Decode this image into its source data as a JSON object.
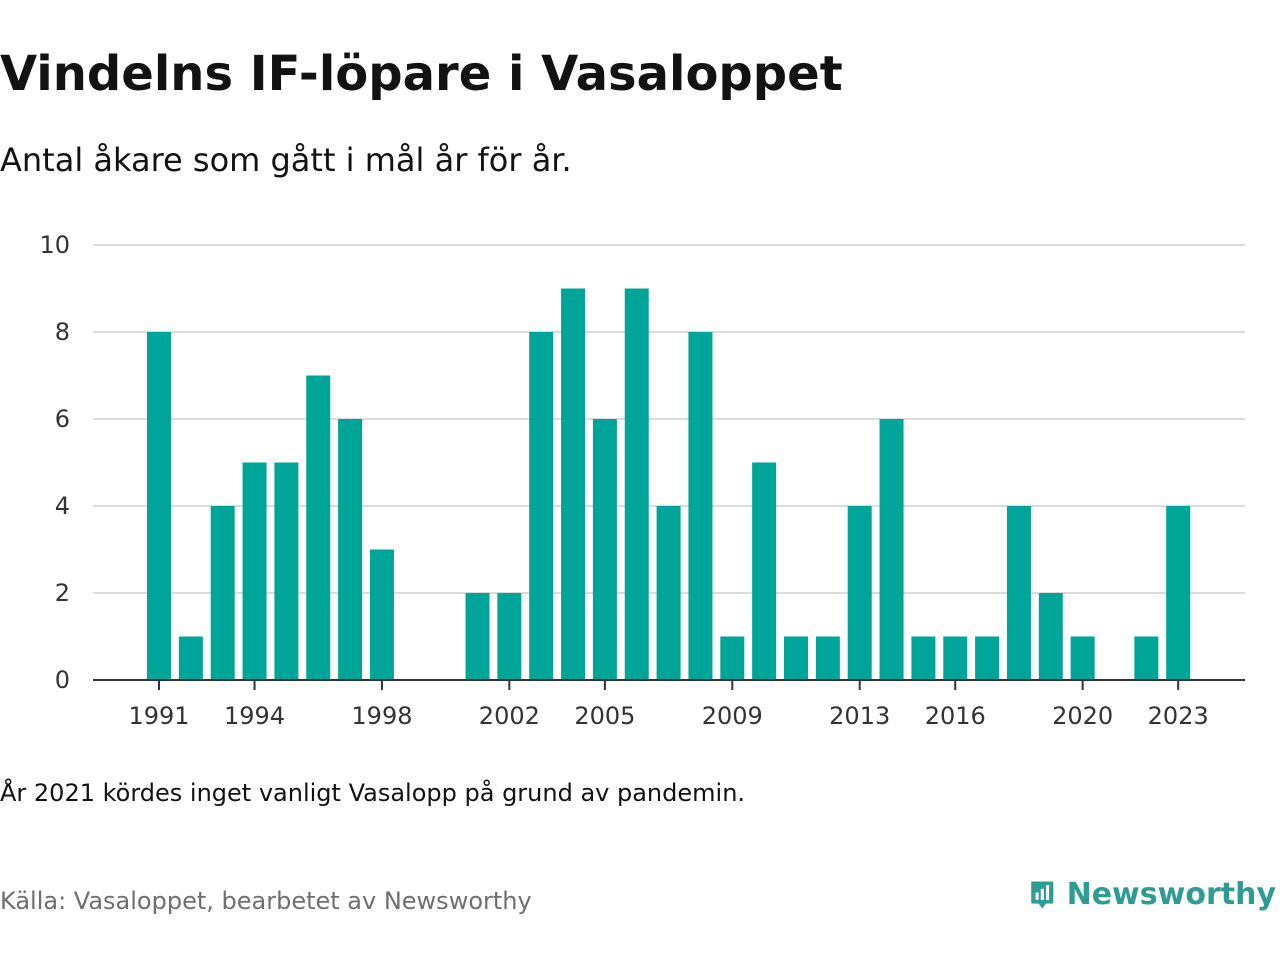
{
  "header": {
    "title": "Vindelns IF-löpare i Vasaloppet",
    "subtitle": "Antal åkare som gått i mål år för år."
  },
  "footer": {
    "note": "År 2021 kördes inget vanligt Vasalopp på grund av pandemin.",
    "source": "Källa: Vasaloppet, bearbetet av Newsworthy",
    "brand_name": "Newsworthy",
    "brand_icon": "newsworthy-logo-icon"
  },
  "colors": {
    "bar": "#00a59a",
    "grid": "#dcdcdc",
    "axis": "#333333",
    "brand": "#2e9c93"
  },
  "chart_data": {
    "type": "bar",
    "categories": [
      "1991",
      "1992",
      "1993",
      "1994",
      "1995",
      "1996",
      "1997",
      "1998",
      "1999",
      "2000",
      "2001",
      "2002",
      "2003",
      "2004",
      "2005",
      "2006",
      "2007",
      "2008",
      "2009",
      "2010",
      "2011",
      "2012",
      "2013",
      "2014",
      "2015",
      "2016",
      "2017",
      "2018",
      "2019",
      "2020",
      "2021",
      "2022",
      "2023"
    ],
    "values": [
      8,
      1,
      4,
      5,
      5,
      7,
      6,
      3,
      0,
      0,
      2,
      2,
      8,
      9,
      6,
      9,
      4,
      8,
      1,
      5,
      1,
      1,
      4,
      6,
      1,
      1,
      1,
      4,
      2,
      1,
      0,
      1,
      4
    ],
    "x_tick_labels": [
      "1991",
      "1994",
      "1998",
      "2002",
      "2005",
      "2009",
      "2013",
      "2016",
      "2020",
      "2023"
    ],
    "y_tick_labels": [
      "0",
      "2",
      "4",
      "6",
      "8",
      "10"
    ],
    "ylim": [
      0,
      10
    ],
    "xlabel": "",
    "ylabel": "",
    "grid": true,
    "legend": "none"
  }
}
